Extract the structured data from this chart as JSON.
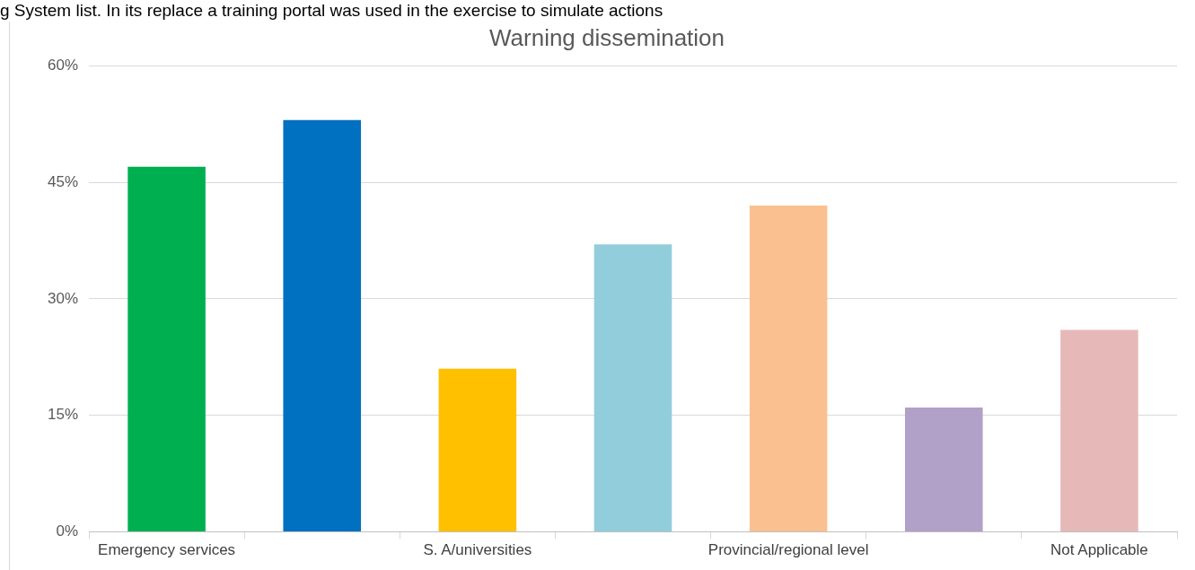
{
  "chart_data": {
    "type": "bar",
    "title": "Warning dissemination",
    "annotations": [
      "g System list. In its replace a training portal was used in the exercise to simulate actions"
    ],
    "categories": [
      "Emergency services",
      null,
      "S. A/universities",
      null,
      "Provincial/regional level",
      null,
      "Not Applicable"
    ],
    "values": [
      47,
      53,
      21,
      37,
      42,
      16,
      26
    ],
    "colors": [
      "#00b050",
      "#0070c0",
      "#ffc000",
      "#92cddc",
      "#fac090",
      "#b1a0c7",
      "#e6b9b8"
    ],
    "ylim": [
      0,
      60
    ],
    "yticks": [
      {
        "value": 0,
        "label": "0%"
      },
      {
        "value": 15,
        "label": "15%"
      },
      {
        "value": 30,
        "label": "30%"
      },
      {
        "value": 45,
        "label": "45%"
      },
      {
        "value": 60,
        "label": "60%"
      }
    ],
    "grid": "y",
    "legend": false
  }
}
